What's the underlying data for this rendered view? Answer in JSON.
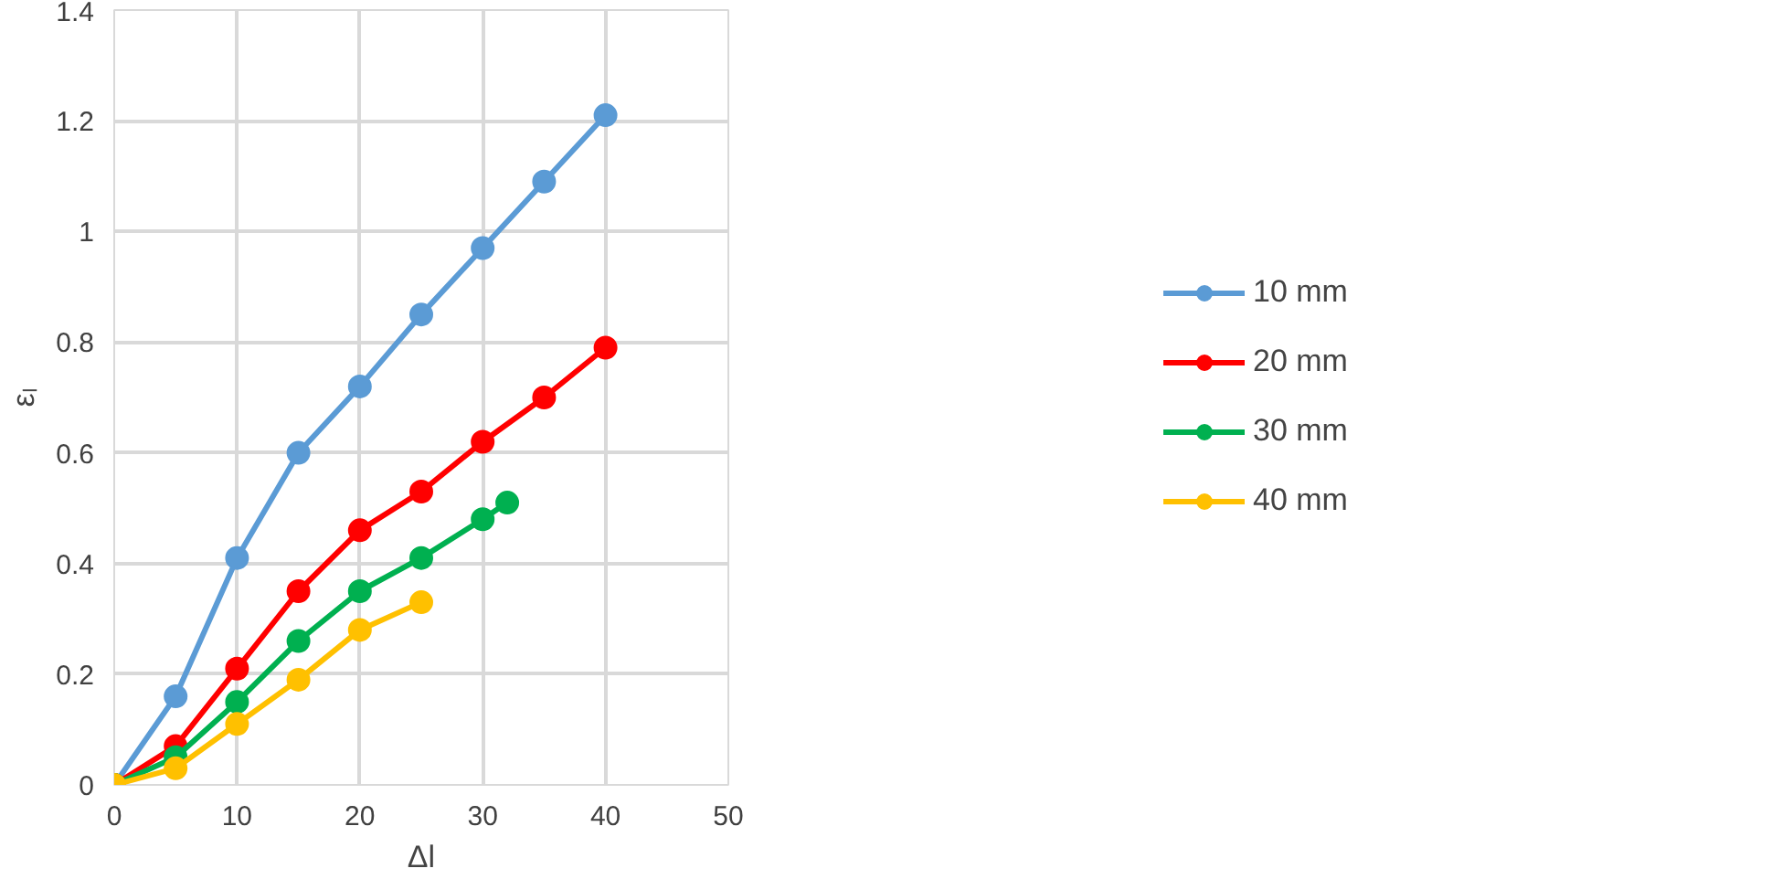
{
  "chart_data": {
    "type": "line",
    "xlabel": "Δl",
    "ylabel": "εₗ",
    "xlim": [
      0,
      50
    ],
    "ylim": [
      0,
      1.4
    ],
    "xticks": [
      0,
      10,
      20,
      30,
      40,
      50
    ],
    "yticks": [
      0,
      0.2,
      0.4,
      0.6,
      0.8,
      1,
      1.2,
      1.4
    ],
    "grid": true,
    "legend": "right",
    "marker": "circle",
    "line_style": "solid",
    "series": [
      {
        "name": "10 mm",
        "color": "#5b9bd5",
        "x": [
          0,
          5,
          10,
          15,
          20,
          25,
          30,
          35,
          40
        ],
        "values": [
          0,
          0.16,
          0.41,
          0.6,
          0.72,
          0.85,
          0.97,
          1.09,
          1.21
        ]
      },
      {
        "name": "20 mm",
        "color": "#ff0000",
        "x": [
          0,
          5,
          10,
          15,
          20,
          25,
          30,
          35,
          40
        ],
        "values": [
          0,
          0.07,
          0.21,
          0.35,
          0.46,
          0.53,
          0.62,
          0.7,
          0.79
        ]
      },
      {
        "name": "30 mm",
        "color": "#00b050",
        "x": [
          0,
          5,
          10,
          15,
          20,
          25,
          30,
          32
        ],
        "values": [
          0,
          0.05,
          0.15,
          0.26,
          0.35,
          0.41,
          0.48,
          0.51
        ]
      },
      {
        "name": "40 mm",
        "color": "#ffc000",
        "x": [
          0,
          5,
          10,
          15,
          20,
          25
        ],
        "values": [
          0,
          0.03,
          0.11,
          0.19,
          0.28,
          0.33
        ]
      }
    ]
  }
}
